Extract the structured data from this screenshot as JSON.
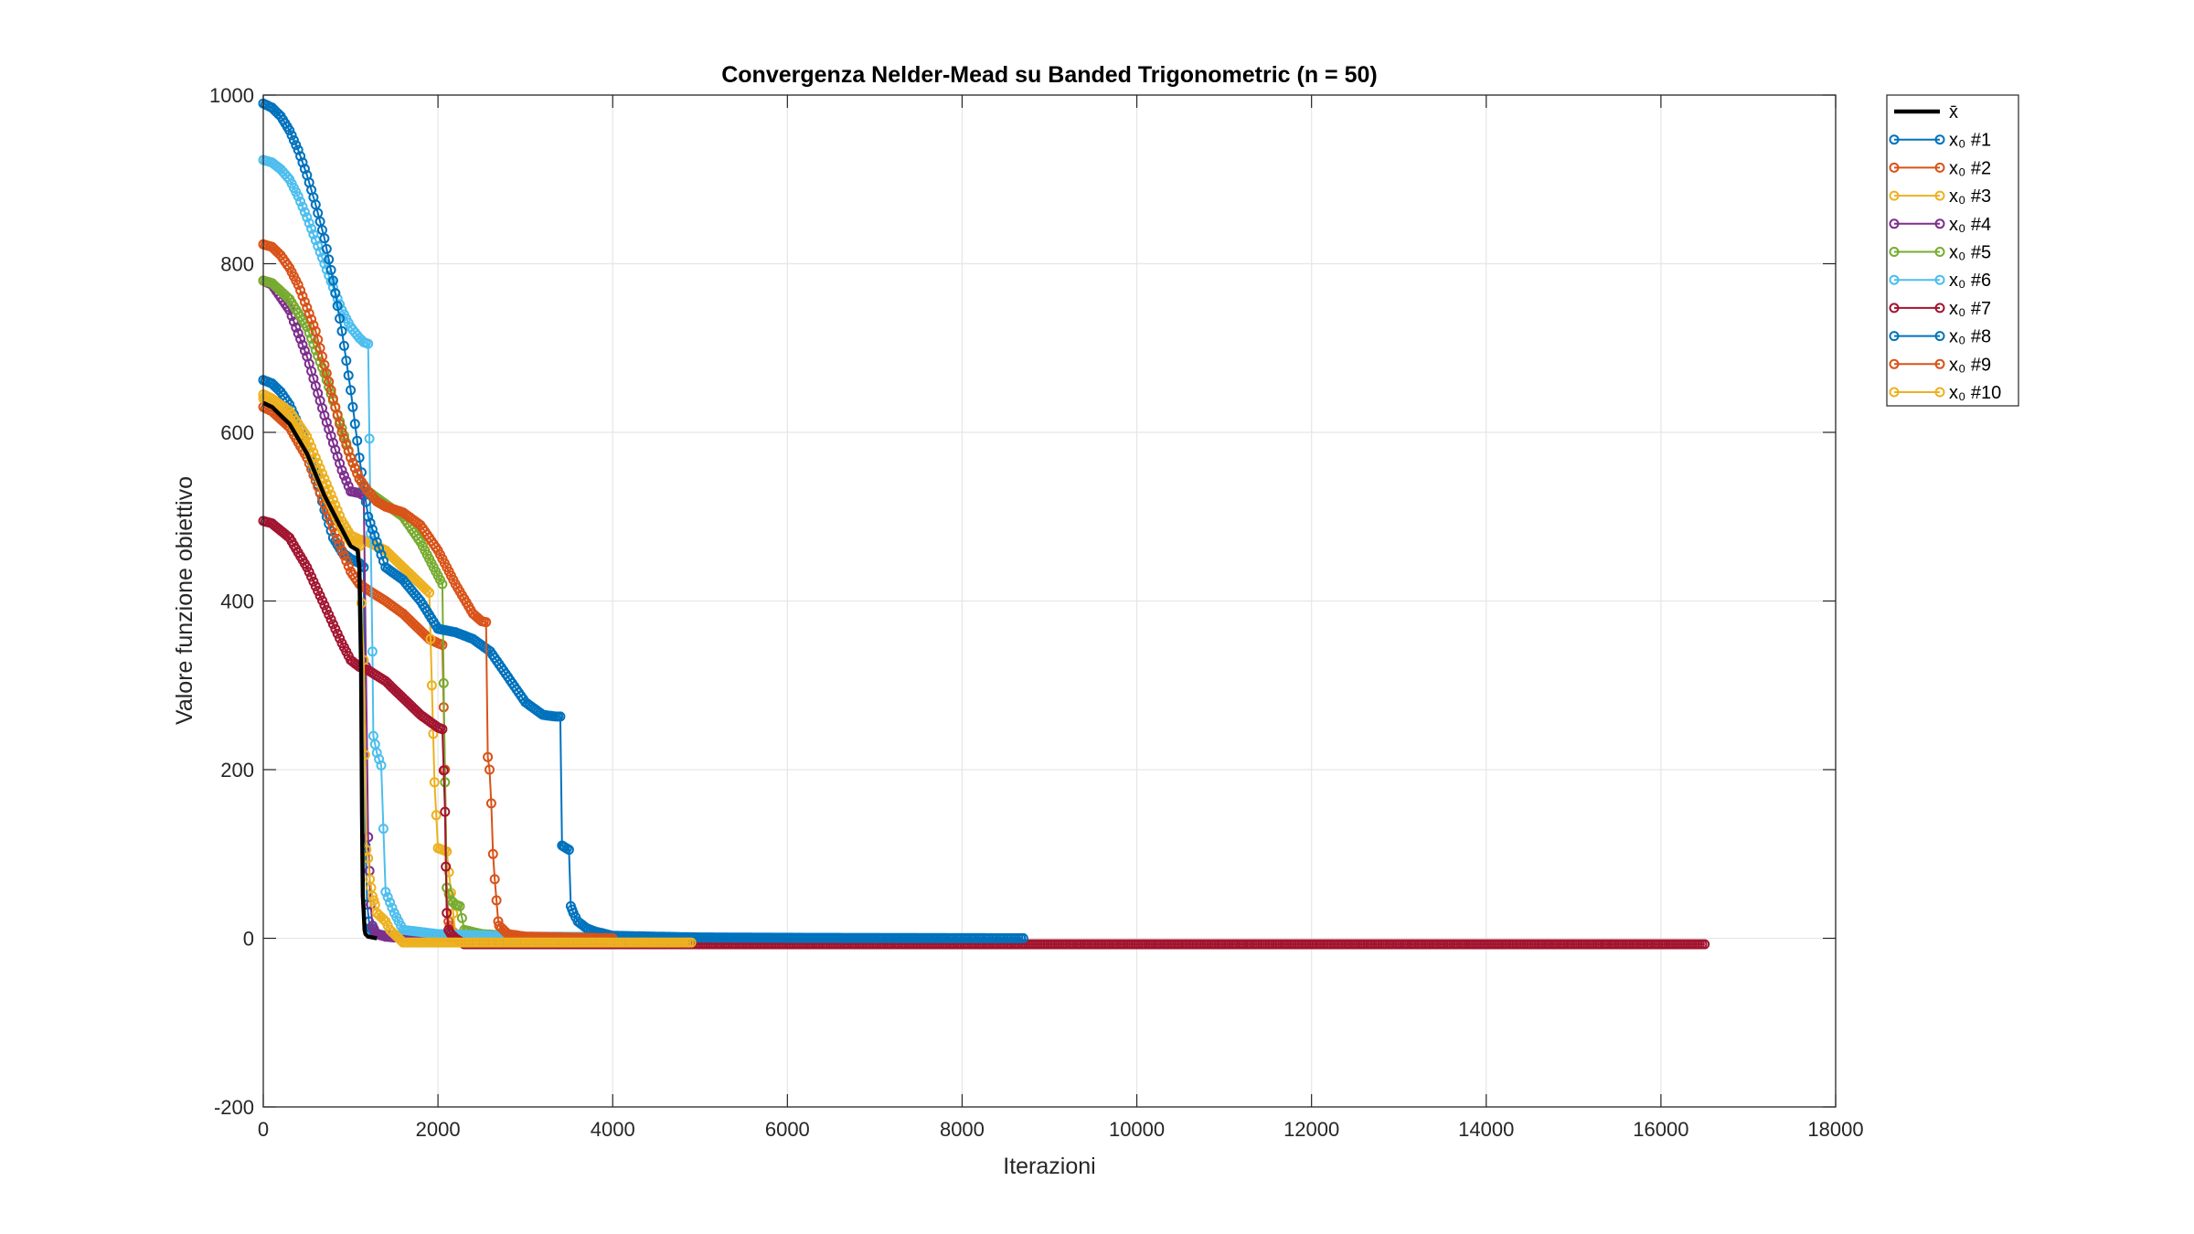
{
  "chart_data": {
    "type": "line",
    "title": "Convergenza Nelder-Mead su Banded Trigonometric (n = 50)",
    "xlabel": "Iterazioni",
    "ylabel": "Valore funzione obiettivo",
    "xlim": [
      0,
      18000
    ],
    "ylim": [
      -200,
      1000
    ],
    "xticks": [
      0,
      2000,
      4000,
      6000,
      8000,
      10000,
      12000,
      14000,
      16000,
      18000
    ],
    "yticks": [
      -200,
      0,
      200,
      400,
      600,
      800,
      1000
    ],
    "grid": true,
    "legend_position": "outside top-right",
    "series": [
      {
        "name": "x̄",
        "color": "#000000",
        "markers": false,
        "x": [
          0,
          100,
          300,
          500,
          700,
          900,
          1000,
          1080,
          1100,
          1120,
          1130,
          1140,
          1150,
          1160,
          1170,
          1200,
          1300
        ],
        "y": [
          635,
          630,
          610,
          575,
          525,
          485,
          465,
          460,
          440,
          320,
          150,
          50,
          30,
          10,
          5,
          2,
          0
        ]
      },
      {
        "name": "x₀ #1",
        "color": "#0072BD",
        "markers": true,
        "x": [
          0,
          100,
          200,
          300,
          400,
          500,
          600,
          700,
          800,
          900,
          1000,
          1100,
          1150,
          1170,
          1190,
          1210,
          1230,
          1260,
          1300,
          1400,
          2000,
          3000,
          4000,
          5000,
          6000,
          7000
        ],
        "y": [
          662,
          658,
          648,
          633,
          610,
          583,
          548,
          508,
          475,
          458,
          450,
          445,
          440,
          110,
          40,
          20,
          12,
          8,
          5,
          3,
          2,
          1,
          0.5,
          0.3,
          0.2,
          0.1
        ]
      },
      {
        "name": "x₀ #2",
        "color": "#D95319",
        "markers": true,
        "x": [
          0,
          100,
          300,
          500,
          700,
          900,
          1000,
          1100,
          1200,
          1400,
          1600,
          1800,
          1900,
          2000,
          2050,
          2080,
          2100,
          2120,
          2150,
          2200,
          2300,
          2500,
          3000,
          4000
        ],
        "y": [
          630,
          625,
          606,
          570,
          515,
          460,
          435,
          420,
          413,
          400,
          385,
          365,
          355,
          350,
          348,
          200,
          60,
          20,
          10,
          5,
          2,
          1,
          0,
          0
        ]
      },
      {
        "name": "x₀ #3",
        "color": "#EDB120",
        "markers": true,
        "x": [
          0,
          100,
          300,
          500,
          700,
          900,
          1000,
          1100,
          1200,
          1400,
          1600,
          1800,
          1900,
          1930,
          1960,
          2000,
          2050,
          2100,
          2200,
          2400,
          3000,
          4000
        ],
        "y": [
          645,
          640,
          625,
          595,
          545,
          495,
          478,
          473,
          470,
          460,
          440,
          420,
          410,
          300,
          185,
          107,
          105,
          103,
          5,
          2,
          0,
          -1
        ]
      },
      {
        "name": "x₀ #4",
        "color": "#7E2F8E",
        "markers": true,
        "x": [
          0,
          100,
          300,
          500,
          700,
          900,
          1000,
          1100,
          1150,
          1200,
          1230,
          1250,
          1280,
          1300,
          1400,
          1500,
          2000,
          3000
        ],
        "y": [
          780,
          775,
          745,
          690,
          620,
          555,
          530,
          528,
          525,
          120,
          40,
          15,
          8,
          5,
          2,
          1,
          0,
          0
        ]
      },
      {
        "name": "x₀ #5",
        "color": "#77AC30",
        "markers": true,
        "x": [
          0,
          100,
          300,
          500,
          700,
          900,
          1000,
          1100,
          1200,
          1400,
          1600,
          1800,
          1950,
          2050,
          2080,
          2100,
          2150,
          2200,
          2250,
          2300,
          2500,
          3000
        ],
        "y": [
          780,
          777,
          758,
          725,
          670,
          605,
          570,
          545,
          530,
          515,
          500,
          470,
          440,
          420,
          185,
          60,
          45,
          40,
          38,
          10,
          5,
          2
        ]
      },
      {
        "name": "x₀ #6",
        "color": "#4DBEEE",
        "markers": true,
        "x": [
          0,
          100,
          200,
          300,
          400,
          500,
          600,
          700,
          800,
          900,
          1000,
          1100,
          1150,
          1200,
          1230,
          1250,
          1260,
          1280,
          1300,
          1350,
          1400,
          1500,
          1600,
          2000,
          3000,
          5000,
          7000,
          7800
        ],
        "y": [
          923,
          920,
          912,
          900,
          880,
          855,
          828,
          800,
          772,
          745,
          725,
          712,
          707,
          705,
          480,
          340,
          240,
          230,
          220,
          205,
          55,
          30,
          10,
          5,
          2,
          1,
          0.5,
          0.3
        ]
      },
      {
        "name": "x₀ #7",
        "color": "#A2142F",
        "markers": true,
        "x": [
          0,
          100,
          300,
          500,
          700,
          900,
          1000,
          1100,
          1200,
          1400,
          1600,
          1800,
          2000,
          2050,
          2080,
          2090,
          2100,
          2120,
          2150,
          2200,
          2300,
          4000,
          8000,
          12000,
          16500
        ],
        "y": [
          495,
          492,
          475,
          440,
          395,
          350,
          330,
          322,
          318,
          305,
          285,
          265,
          250,
          248,
          150,
          85,
          30,
          10,
          5,
          0,
          -7,
          -7,
          -7,
          -7,
          -7
        ]
      },
      {
        "name": "x₀ #8",
        "color": "#0072BD",
        "markers": true,
        "x": [
          0,
          100,
          200,
          300,
          400,
          500,
          600,
          700,
          800,
          900,
          1000,
          1100,
          1200,
          1400,
          1600,
          1800,
          2000,
          2200,
          2400,
          2600,
          2800,
          3000,
          3200,
          3350,
          3400,
          3420,
          3450,
          3500,
          3520,
          3550,
          3600,
          3700,
          3800,
          4000,
          5000,
          6000,
          7000,
          8000,
          8700
        ],
        "y": [
          990,
          985,
          975,
          958,
          935,
          905,
          870,
          830,
          780,
          720,
          650,
          570,
          500,
          440,
          425,
          400,
          367,
          363,
          355,
          340,
          310,
          280,
          265,
          263,
          263,
          110,
          108,
          105,
          38,
          30,
          20,
          12,
          8,
          3,
          1,
          0.5,
          0.3,
          0.2,
          0.1
        ]
      },
      {
        "name": "x₀ #9",
        "color": "#D95319",
        "markers": true,
        "x": [
          0,
          100,
          200,
          300,
          400,
          500,
          600,
          700,
          800,
          900,
          1000,
          1100,
          1200,
          1300,
          1400,
          1600,
          1800,
          2000,
          2200,
          2400,
          2500,
          2550,
          2570,
          2590,
          2610,
          2630,
          2650,
          2670,
          2690,
          2700,
          2750,
          2800,
          3000,
          4000
        ],
        "y": [
          823,
          820,
          810,
          795,
          775,
          748,
          720,
          680,
          640,
          600,
          570,
          545,
          530,
          518,
          512,
          505,
          490,
          460,
          420,
          385,
          376,
          375,
          215,
          200,
          160,
          100,
          70,
          45,
          20,
          15,
          10,
          5,
          2,
          0
        ]
      },
      {
        "name": "x₀ #10",
        "color": "#EDB120",
        "markers": true,
        "x": [
          0,
          100,
          300,
          500,
          700,
          900,
          1000,
          1100,
          1150,
          1180,
          1200,
          1220,
          1250,
          1280,
          1300,
          1350,
          1400,
          1450,
          1500,
          1600,
          2000,
          3000,
          4000,
          4900
        ],
        "y": [
          640,
          635,
          615,
          580,
          530,
          485,
          470,
          465,
          330,
          105,
          95,
          70,
          50,
          40,
          30,
          25,
          20,
          10,
          5,
          -5,
          -5,
          -5,
          -5,
          -5
        ]
      }
    ]
  }
}
